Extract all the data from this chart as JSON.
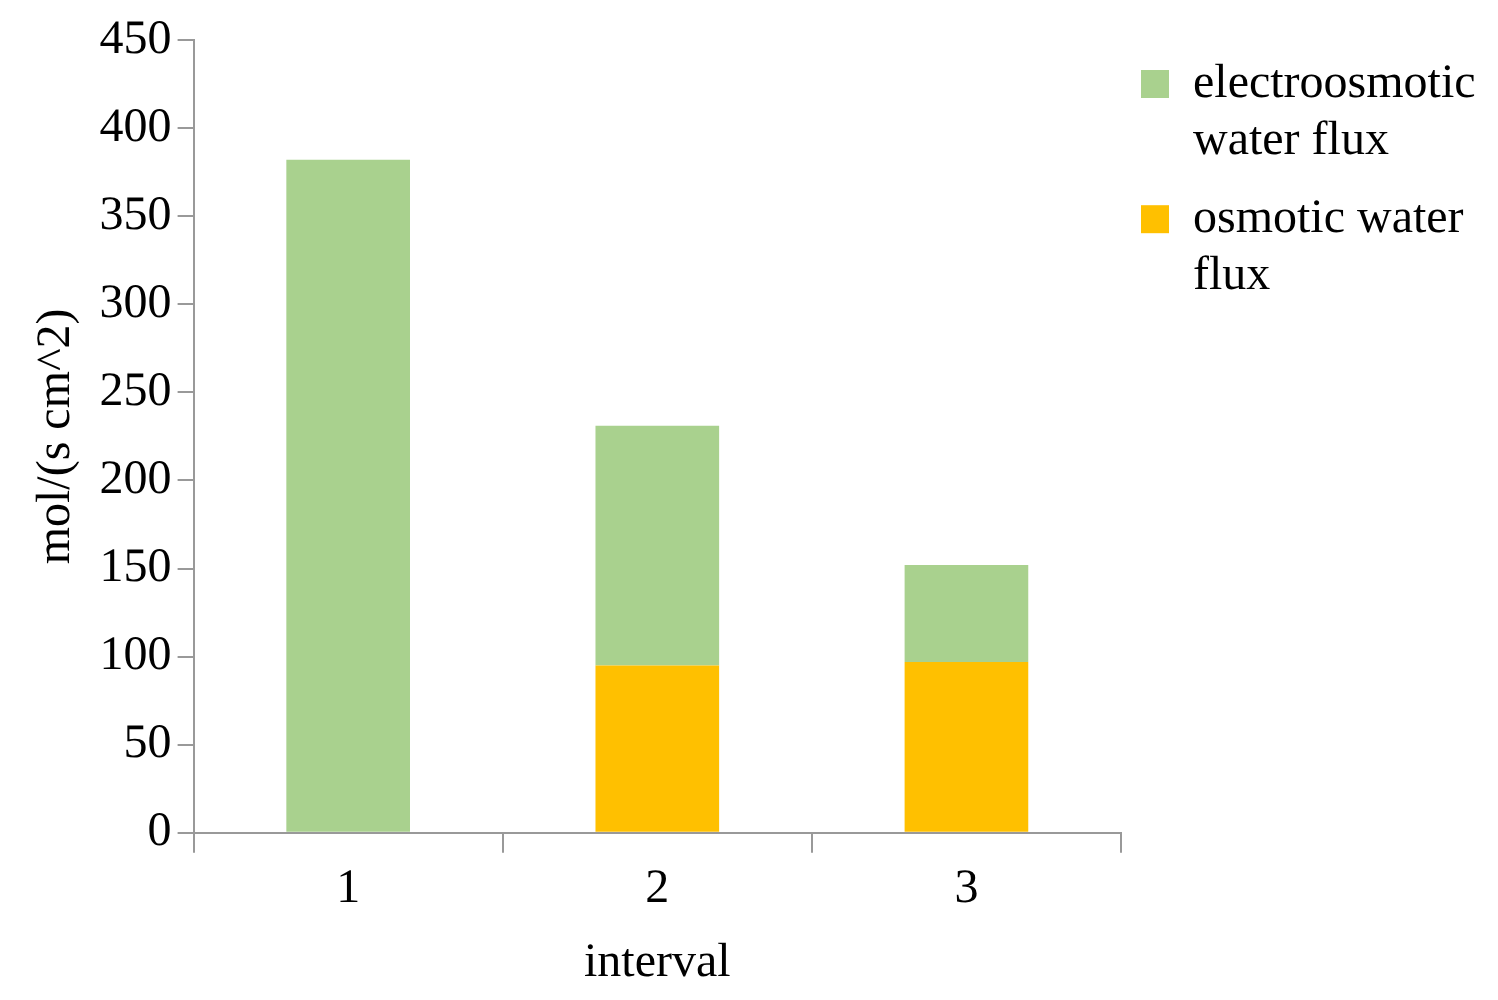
{
  "chart_data": {
    "type": "bar",
    "stacked": true,
    "xlabel": "interval",
    "ylabel": "mol/(s cm^2)",
    "categories": [
      "1",
      "2",
      "3"
    ],
    "series": [
      {
        "name": "osmotic water flux",
        "color": "#ffc000",
        "values": [
          0,
          95,
          97
        ]
      },
      {
        "name": "electroosmotic water flux",
        "color": "#a9d18e",
        "values": [
          382,
          136,
          55
        ]
      }
    ],
    "ylim": [
      0,
      450
    ],
    "yticks": [
      0,
      50,
      100,
      150,
      200,
      250,
      300,
      350,
      400,
      450
    ],
    "grid": false,
    "legend": "top right"
  }
}
